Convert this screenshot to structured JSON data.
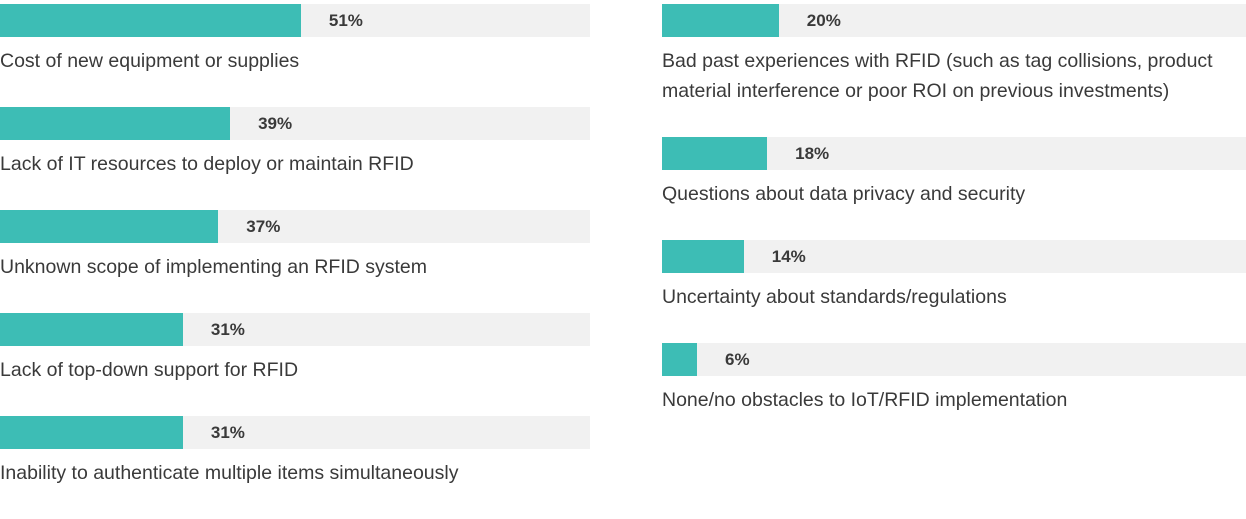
{
  "chart_data": {
    "type": "bar",
    "categories": [
      "Cost of new equipment or supplies",
      "Lack of IT resources to deploy or maintain RFID",
      "Unknown scope of implementing an RFID system",
      "Lack of top-down support for RFID",
      "Inability to authenticate multiple items simultaneously",
      "Bad past experiences with RFID (such as tag collisions, product material interference or poor ROI on previous investments)",
      "Questions about data privacy and security",
      "Uncertainty about standards/regulations",
      "None/no obstacles to IoT/RFID implementation"
    ],
    "values": [
      51,
      39,
      37,
      31,
      31,
      20,
      18,
      14,
      6
    ],
    "value_labels": [
      "51%",
      "39%",
      "37%",
      "31%",
      "31%",
      "20%",
      "18%",
      "14%",
      "6%"
    ],
    "color": "#3dbdb5"
  }
}
